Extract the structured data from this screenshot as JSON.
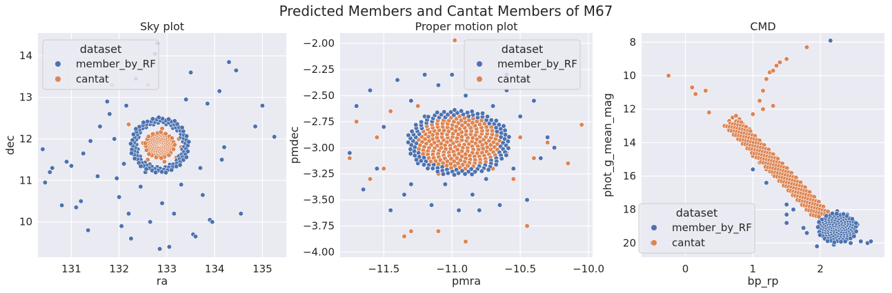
{
  "suptitle": "Predicted Members and Cantat Members of M67",
  "chart_data": [
    {
      "type": "scatter",
      "title": "Sky plot",
      "xlabel": "ra",
      "ylabel": "dec",
      "xlim": [
        130.3,
        135.5
      ],
      "ylim": [
        9.15,
        14.55
      ],
      "xticks": [
        131,
        132,
        133,
        134,
        135
      ],
      "yticks": [
        10,
        11,
        12,
        13,
        14
      ],
      "y_inverted": false,
      "grid": true,
      "legend": {
        "title": "dataset",
        "position": "top-left",
        "entries": [
          "member_by_RF",
          "cantat"
        ]
      },
      "series": [
        {
          "name": "member_by_RF",
          "color": "#4c72b0",
          "points": [
            [
              130.4,
              11.75
            ],
            [
              130.45,
              10.95
            ],
            [
              130.55,
              11.2
            ],
            [
              130.6,
              11.3
            ],
            [
              130.8,
              10.4
            ],
            [
              130.9,
              11.45
            ],
            [
              131.0,
              11.35
            ],
            [
              131.1,
              10.35
            ],
            [
              131.2,
              10.5
            ],
            [
              131.25,
              11.65
            ],
            [
              131.35,
              9.8
            ],
            [
              131.4,
              11.95
            ],
            [
              131.55,
              11.1
            ],
            [
              131.6,
              12.3
            ],
            [
              131.75,
              12.9
            ],
            [
              131.8,
              12.6
            ],
            [
              131.9,
              12.0
            ],
            [
              131.95,
              11.05
            ],
            [
              132.0,
              10.6
            ],
            [
              132.05,
              9.9
            ],
            [
              132.1,
              11.4
            ],
            [
              132.15,
              12.8
            ],
            [
              132.2,
              10.2
            ],
            [
              132.25,
              9.6
            ],
            [
              132.35,
              13.45
            ],
            [
              132.45,
              10.85
            ],
            [
              132.55,
              11.2
            ],
            [
              132.65,
              10.0
            ],
            [
              132.75,
              14.05
            ],
            [
              132.8,
              14.3
            ],
            [
              132.85,
              9.35
            ],
            [
              132.9,
              10.45
            ],
            [
              133.05,
              9.4
            ],
            [
              133.15,
              10.2
            ],
            [
              133.3,
              10.9
            ],
            [
              133.4,
              12.95
            ],
            [
              133.5,
              13.6
            ],
            [
              133.55,
              9.7
            ],
            [
              133.6,
              9.65
            ],
            [
              133.7,
              11.3
            ],
            [
              133.75,
              10.65
            ],
            [
              133.85,
              12.85
            ],
            [
              133.9,
              10.05
            ],
            [
              133.95,
              10.0
            ],
            [
              134.1,
              13.15
            ],
            [
              134.15,
              11.5
            ],
            [
              134.2,
              11.8
            ],
            [
              134.3,
              13.85
            ],
            [
              134.45,
              13.65
            ],
            [
              134.55,
              10.2
            ],
            [
              134.85,
              12.3
            ],
            [
              135.0,
              12.8
            ],
            [
              135.25,
              12.05
            ]
          ]
        },
        {
          "name": "cantat",
          "color": "#dd8452",
          "points": [
            [
              131.85,
              13.3
            ],
            [
              132.2,
              12.35
            ],
            [
              132.35,
              11.55
            ],
            [
              132.45,
              12.2
            ],
            [
              132.5,
              11.9
            ],
            [
              132.6,
              11.5
            ],
            [
              132.65,
              12.4
            ],
            [
              132.7,
              11.7
            ],
            [
              132.75,
              12.05
            ],
            [
              132.8,
              11.85
            ],
            [
              132.85,
              11.6
            ],
            [
              132.9,
              12.25
            ],
            [
              132.95,
              11.45
            ],
            [
              133.05,
              11.95
            ],
            [
              133.1,
              11.75
            ],
            [
              133.15,
              12.3
            ],
            [
              133.2,
              11.55
            ],
            [
              133.25,
              12.0
            ],
            [
              133.3,
              11.8
            ],
            [
              132.9,
              11.8
            ],
            [
              132.6,
              13.3
            ]
          ]
        }
      ]
    },
    {
      "type": "scatter",
      "title": "Proper motion plot",
      "xlabel": "pmra",
      "ylabel": "pmdec",
      "xlim": [
        -11.82,
        -9.97
      ],
      "ylim": [
        -4.05,
        -1.9
      ],
      "xticks": [
        -11.5,
        -11.0,
        -10.5,
        -10.0
      ],
      "xtick_labels": [
        "−11.5",
        "−11.0",
        "−10.5",
        "−10.0"
      ],
      "yticks": [
        -4.0,
        -3.75,
        -3.5,
        -3.25,
        -3.0,
        -2.75,
        -2.5,
        -2.25,
        -2.0
      ],
      "ytick_labels": [
        "−4.00",
        "−3.75",
        "−3.50",
        "−3.25",
        "−3.00",
        "−2.75",
        "−2.50",
        "−2.25",
        "−2.00"
      ],
      "y_inverted": false,
      "grid": true,
      "legend": {
        "title": "dataset",
        "position": "top-right",
        "entries": [
          "member_by_RF",
          "cantat"
        ]
      },
      "series": [
        {
          "name": "member_by_RF",
          "color": "#4c72b0",
          "points": [
            [
              -11.75,
              -3.05
            ],
            [
              -11.7,
              -2.6
            ],
            [
              -11.65,
              -3.4
            ],
            [
              -11.6,
              -2.45
            ],
            [
              -11.55,
              -3.2
            ],
            [
              -11.5,
              -2.8
            ],
            [
              -11.45,
              -3.6
            ],
            [
              -11.4,
              -2.35
            ],
            [
              -11.35,
              -3.45
            ],
            [
              -11.3,
              -2.55
            ],
            [
              -11.25,
              -3.15
            ],
            [
              -11.2,
              -2.7
            ],
            [
              -11.15,
              -3.55
            ],
            [
              -11.1,
              -2.4
            ],
            [
              -11.05,
              -3.35
            ],
            [
              -11.0,
              -2.3
            ],
            [
              -10.95,
              -3.6
            ],
            [
              -10.9,
              -2.5
            ],
            [
              -10.85,
              -3.45
            ],
            [
              -10.8,
              -2.35
            ],
            [
              -10.75,
              -3.3
            ],
            [
              -10.7,
              -2.6
            ],
            [
              -10.65,
              -3.55
            ],
            [
              -10.6,
              -2.45
            ],
            [
              -10.55,
              -3.2
            ],
            [
              -10.5,
              -2.7
            ],
            [
              -10.45,
              -3.5
            ],
            [
              -10.4,
              -2.55
            ],
            [
              -10.35,
              -3.1
            ],
            [
              -10.3,
              -2.9
            ],
            [
              -10.25,
              -3.0
            ],
            [
              -10.6,
              -2.3
            ],
            [
              -11.2,
              -2.3
            ],
            [
              -10.8,
              -3.6
            ],
            [
              -11.3,
              -3.35
            ],
            [
              -10.45,
              -2.35
            ]
          ]
        },
        {
          "name": "cantat",
          "color": "#dd8452",
          "points": [
            [
              -11.75,
              -3.1
            ],
            [
              -11.7,
              -2.75
            ],
            [
              -11.6,
              -3.3
            ],
            [
              -11.55,
              -2.9
            ],
            [
              -11.5,
              -3.2
            ],
            [
              -11.45,
              -2.65
            ],
            [
              -11.35,
              -3.85
            ],
            [
              -11.3,
              -3.8
            ],
            [
              -11.25,
              -2.6
            ],
            [
              -11.2,
              -3.05
            ],
            [
              -11.15,
              -2.85
            ],
            [
              -11.1,
              -3.25
            ],
            [
              -11.05,
              -2.75
            ],
            [
              -11.0,
              -3.1
            ],
            [
              -10.98,
              -1.97
            ],
            [
              -10.95,
              -2.9
            ],
            [
              -10.9,
              -3.15
            ],
            [
              -10.85,
              -2.8
            ],
            [
              -10.8,
              -3.0
            ],
            [
              -10.75,
              -2.95
            ],
            [
              -10.7,
              -3.2
            ],
            [
              -10.65,
              -2.85
            ],
            [
              -10.6,
              -3.05
            ],
            [
              -10.55,
              -3.3
            ],
            [
              -10.5,
              -2.9
            ],
            [
              -10.45,
              -3.75
            ],
            [
              -10.4,
              -3.1
            ],
            [
              -10.3,
              -2.95
            ],
            [
              -10.15,
              -3.15
            ],
            [
              -10.05,
              -2.78
            ],
            [
              -10.9,
              -3.9
            ],
            [
              -11.1,
              -3.8
            ],
            [
              -10.6,
              -2.2
            ]
          ]
        }
      ]
    },
    {
      "type": "scatter",
      "title": "CMD",
      "xlabel": "bp_rp",
      "ylabel": "phot_g_mean_mag",
      "xlim": [
        -0.65,
        2.95
      ],
      "ylim": [
        7.45,
        20.85
      ],
      "xticks": [
        0,
        1,
        2
      ],
      "yticks": [
        8,
        10,
        12,
        14,
        16,
        18,
        20
      ],
      "y_inverted": true,
      "grid": true,
      "legend": {
        "title": "dataset",
        "position": "lower-left",
        "entries": [
          "member_by_RF",
          "cantat"
        ]
      },
      "series": [
        {
          "name": "member_by_RF",
          "color": "#4c72b0",
          "points": [
            [
              2.15,
              7.9
            ],
            [
              -0.5,
              20.0
            ],
            [
              1.0,
              15.6
            ],
            [
              1.2,
              16.4
            ],
            [
              1.5,
              17.7
            ],
            [
              1.5,
              18.3
            ],
            [
              1.5,
              18.8
            ],
            [
              1.6,
              18.0
            ],
            [
              1.75,
              19.1
            ],
            [
              1.8,
              19.4
            ],
            [
              1.95,
              20.2
            ],
            [
              2.0,
              18.6
            ],
            [
              2.05,
              19.0
            ],
            [
              2.1,
              19.5
            ],
            [
              2.15,
              18.9
            ],
            [
              2.2,
              20.1
            ],
            [
              2.25,
              19.3
            ],
            [
              2.3,
              18.7
            ],
            [
              2.35,
              19.8
            ],
            [
              2.4,
              19.2
            ],
            [
              2.45,
              20.0
            ],
            [
              2.5,
              19.6
            ],
            [
              2.55,
              18.9
            ],
            [
              2.6,
              19.9
            ],
            [
              2.7,
              20.0
            ],
            [
              2.75,
              19.9
            ],
            [
              2.05,
              18.2
            ],
            [
              2.15,
              18.5
            ],
            [
              2.25,
              18.1
            ],
            [
              2.35,
              18.6
            ],
            [
              2.4,
              18.3
            ]
          ]
        },
        {
          "name": "cantat",
          "color": "#dd8452",
          "points": [
            [
              -0.25,
              10.0
            ],
            [
              0.1,
              10.7
            ],
            [
              0.15,
              11.1
            ],
            [
              0.3,
              10.9
            ],
            [
              0.35,
              12.2
            ],
            [
              1.1,
              11.5
            ],
            [
              1.15,
              10.9
            ],
            [
              1.2,
              10.2
            ],
            [
              1.25,
              9.8
            ],
            [
              1.3,
              9.7
            ],
            [
              1.35,
              9.4
            ],
            [
              1.4,
              9.2
            ],
            [
              1.5,
              9.0
            ],
            [
              1.8,
              8.3
            ],
            [
              0.65,
              12.7
            ],
            [
              0.7,
              12.5
            ],
            [
              0.75,
              12.4
            ],
            [
              0.8,
              12.6
            ],
            [
              0.85,
              12.9
            ],
            [
              0.9,
              13.6
            ],
            [
              0.95,
              14.4
            ],
            [
              1.0,
              14.8
            ],
            [
              1.1,
              15.2
            ],
            [
              1.2,
              15.6
            ],
            [
              1.3,
              15.9
            ],
            [
              1.4,
              16.2
            ],
            [
              1.5,
              16.6
            ],
            [
              1.6,
              16.9
            ],
            [
              1.7,
              17.2
            ],
            [
              1.8,
              17.5
            ],
            [
              1.9,
              17.8
            ],
            [
              2.0,
              18.1
            ],
            [
              1.0,
              12.3
            ],
            [
              1.15,
              12.0
            ],
            [
              1.3,
              11.8
            ],
            [
              0.95,
              13.2
            ],
            [
              1.35,
              14.9
            ]
          ]
        }
      ]
    }
  ]
}
